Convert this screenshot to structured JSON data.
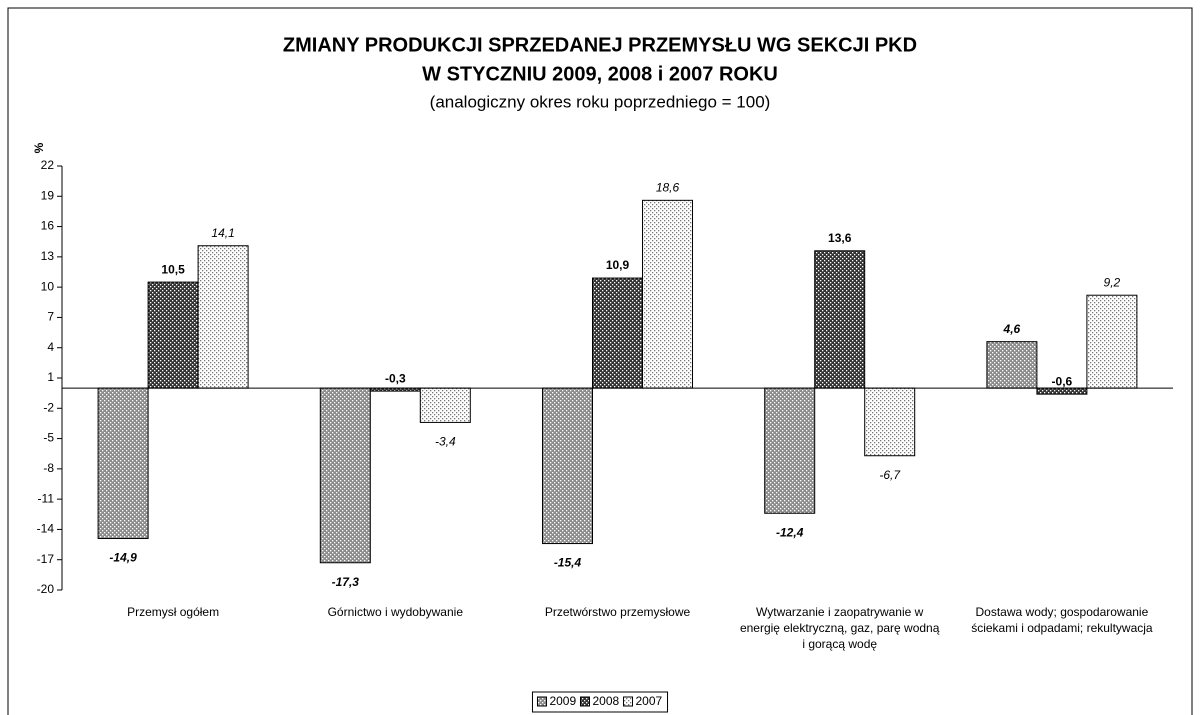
{
  "chart_data": {
    "type": "bar",
    "title": [
      "ZMIANY PRODUKCJI SPRZEDANEJ PRZEMYSŁU WG SEKCJI PKD",
      "W STYCZNIU 2009, 2008 i 2007 ROKU"
    ],
    "subtitle": "(analogiczny okres roku poprzedniego = 100)",
    "y_label": "%",
    "categories": [
      "Przemysł ogółem",
      "Górnictwo i wydobywanie",
      "Przetwórstwo przemysłowe",
      "Wytwarzanie i zaopatrywanie w energię elektryczną, gaz, parę wodną i gorącą wodę",
      "Dostawa wody; gospodarowanie ściekami i odpadami; rekultywacja"
    ],
    "series": [
      {
        "name": "2009",
        "color": "#8c8c8c",
        "values": [
          -14.9,
          -17.3,
          -15.4,
          -12.4,
          4.6
        ],
        "value_labels": [
          "-14,9",
          "-17,3",
          "-15,4",
          "-12,4",
          "4,6"
        ]
      },
      {
        "name": "2008",
        "color": "#333333",
        "values": [
          10.5,
          -0.3,
          10.9,
          13.6,
          -0.6
        ],
        "value_labels": [
          "10,5",
          "-0,3",
          "10,9",
          "13,6",
          "-0,6"
        ]
      },
      {
        "name": "2007",
        "color": "#ffffff",
        "values": [
          14.1,
          -3.4,
          18.6,
          -6.7,
          9.2
        ],
        "value_labels": [
          "14,1",
          "-3,4",
          "18,6",
          "-6,7",
          "9,2"
        ]
      }
    ],
    "ylim": [
      -20,
      22
    ],
    "yticks": [
      -20,
      -17,
      -14,
      -11,
      -8,
      -5,
      -2,
      1,
      4,
      7,
      10,
      13,
      16,
      19,
      22
    ],
    "grid": false,
    "legend": "bottom"
  }
}
